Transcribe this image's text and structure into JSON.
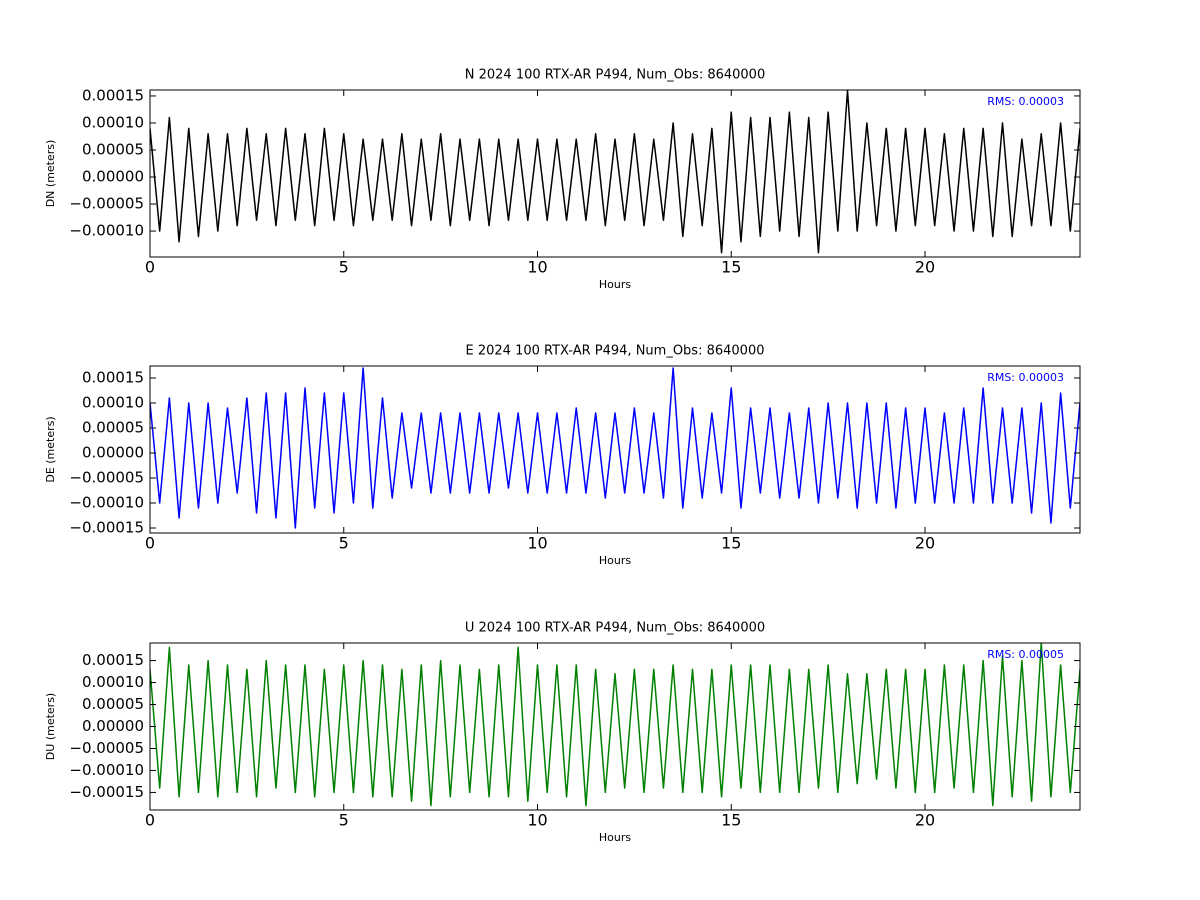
{
  "chart_data": [
    {
      "type": "line",
      "title": "N 2024 100 RTX-AR  P494, Num_Obs: 8640000",
      "xlabel": "Hours",
      "ylabel": "DN (meters)",
      "annotation": "RMS:  0.00003",
      "annotation_color": "#0000ff",
      "color": "#000000",
      "xlim": [
        0,
        24
      ],
      "ylim": [
        -0.000148,
        0.000161
      ],
      "xticks": [
        0,
        5,
        10,
        15,
        20
      ],
      "yticks": [
        {
          "value": -0.0001,
          "label": "−0.00010"
        },
        {
          "value": -5e-05,
          "label": "−0.00005"
        },
        {
          "value": 0,
          "label": "0.00000"
        },
        {
          "value": 5e-05,
          "label": "0.00005"
        },
        {
          "value": 0.0001,
          "label": "0.00010"
        },
        {
          "value": 0.00015,
          "label": "0.00015"
        }
      ],
      "x": [
        0,
        0.25,
        0.5,
        0.75,
        1,
        1.25,
        1.5,
        1.75,
        2,
        2.25,
        2.5,
        2.75,
        3,
        3.25,
        3.5,
        3.75,
        4,
        4.25,
        4.5,
        4.75,
        5,
        5.25,
        5.5,
        5.75,
        6,
        6.25,
        6.5,
        6.75,
        7,
        7.25,
        7.5,
        7.75,
        8,
        8.25,
        8.5,
        8.75,
        9,
        9.25,
        9.5,
        9.75,
        10,
        10.25,
        10.5,
        10.75,
        11,
        11.25,
        11.5,
        11.75,
        12,
        12.25,
        12.5,
        12.75,
        13,
        13.25,
        13.5,
        13.75,
        14,
        14.25,
        14.5,
        14.75,
        15,
        15.25,
        15.5,
        15.75,
        16,
        16.25,
        16.5,
        16.75,
        17,
        17.25,
        17.5,
        17.75,
        18,
        18.25,
        18.5,
        18.75,
        19,
        19.25,
        19.5,
        19.75,
        20,
        20.25,
        20.5,
        20.75,
        21,
        21.25,
        21.5,
        21.75,
        22,
        22.25,
        22.5,
        22.75,
        23,
        23.25,
        23.5,
        23.75,
        24
      ],
      "values": [
        9e-05,
        -0.0001,
        0.00011,
        -0.00012,
        9e-05,
        -0.00011,
        8e-05,
        -0.0001,
        8e-05,
        -9e-05,
        9e-05,
        -8e-05,
        8e-05,
        -9e-05,
        9e-05,
        -8e-05,
        8e-05,
        -9e-05,
        9e-05,
        -8e-05,
        8e-05,
        -9e-05,
        7e-05,
        -8e-05,
        7e-05,
        -8e-05,
        8e-05,
        -9e-05,
        7e-05,
        -8e-05,
        8e-05,
        -9e-05,
        7e-05,
        -8e-05,
        7e-05,
        -9e-05,
        7e-05,
        -8e-05,
        7e-05,
        -8e-05,
        7e-05,
        -8e-05,
        7e-05,
        -8e-05,
        7e-05,
        -8e-05,
        8e-05,
        -9e-05,
        7e-05,
        -8e-05,
        8e-05,
        -9e-05,
        7e-05,
        -8e-05,
        0.0001,
        -0.00011,
        8e-05,
        -9e-05,
        9e-05,
        -0.00014,
        0.00012,
        -0.00012,
        0.00011,
        -0.00011,
        0.00011,
        -0.0001,
        0.00012,
        -0.00011,
        0.00011,
        -0.00014,
        0.00012,
        -0.0001,
        0.00016,
        -0.0001,
        0.0001,
        -9e-05,
        9e-05,
        -0.0001,
        9e-05,
        -9e-05,
        9e-05,
        -9e-05,
        8e-05,
        -0.0001,
        9e-05,
        -0.0001,
        9e-05,
        -0.00011,
        0.0001,
        -0.00011,
        7e-05,
        -9e-05,
        8e-05,
        -9e-05,
        0.0001,
        -0.0001,
        9e-05
      ]
    },
    {
      "type": "line",
      "title": "E 2024 100 RTX-AR  P494, Num_Obs: 8640000",
      "xlabel": "Hours",
      "ylabel": "DE (meters)",
      "annotation": "RMS:  0.00003",
      "annotation_color": "#0000ff",
      "color": "#0000ff",
      "xlim": [
        0,
        24
      ],
      "ylim": [
        -0.00016,
        0.000174
      ],
      "xticks": [
        0,
        5,
        10,
        15,
        20
      ],
      "yticks": [
        {
          "value": -0.00015,
          "label": "−0.00015"
        },
        {
          "value": -0.0001,
          "label": "−0.00010"
        },
        {
          "value": -5e-05,
          "label": "−0.00005"
        },
        {
          "value": 0,
          "label": "0.00000"
        },
        {
          "value": 5e-05,
          "label": "0.00005"
        },
        {
          "value": 0.0001,
          "label": "0.00010"
        },
        {
          "value": 0.00015,
          "label": "0.00015"
        }
      ],
      "x": [
        0,
        0.25,
        0.5,
        0.75,
        1,
        1.25,
        1.5,
        1.75,
        2,
        2.25,
        2.5,
        2.75,
        3,
        3.25,
        3.5,
        3.75,
        4,
        4.25,
        4.5,
        4.75,
        5,
        5.25,
        5.5,
        5.75,
        6,
        6.25,
        6.5,
        6.75,
        7,
        7.25,
        7.5,
        7.75,
        8,
        8.25,
        8.5,
        8.75,
        9,
        9.25,
        9.5,
        9.75,
        10,
        10.25,
        10.5,
        10.75,
        11,
        11.25,
        11.5,
        11.75,
        12,
        12.25,
        12.5,
        12.75,
        13,
        13.25,
        13.5,
        13.75,
        14,
        14.25,
        14.5,
        14.75,
        15,
        15.25,
        15.5,
        15.75,
        16,
        16.25,
        16.5,
        16.75,
        17,
        17.25,
        17.5,
        17.75,
        18,
        18.25,
        18.5,
        18.75,
        19,
        19.25,
        19.5,
        19.75,
        20,
        20.25,
        20.5,
        20.75,
        21,
        21.25,
        21.5,
        21.75,
        22,
        22.25,
        22.5,
        22.75,
        23,
        23.25,
        23.5,
        23.75,
        24
      ],
      "values": [
        0.0001,
        -0.0001,
        0.00011,
        -0.00013,
        0.0001,
        -0.00011,
        0.0001,
        -0.0001,
        9e-05,
        -8e-05,
        0.00011,
        -0.00012,
        0.00012,
        -0.00013,
        0.00012,
        -0.00015,
        0.00013,
        -0.00011,
        0.00012,
        -0.00012,
        0.00012,
        -0.0001,
        0.00017,
        -0.00011,
        0.00011,
        -9e-05,
        8e-05,
        -7e-05,
        8e-05,
        -8e-05,
        8e-05,
        -8e-05,
        8e-05,
        -8e-05,
        8e-05,
        -8e-05,
        8e-05,
        -7e-05,
        8e-05,
        -8e-05,
        8e-05,
        -8e-05,
        8e-05,
        -8e-05,
        9e-05,
        -8e-05,
        8e-05,
        -9e-05,
        8e-05,
        -8e-05,
        9e-05,
        -8e-05,
        8e-05,
        -9e-05,
        0.00017,
        -0.00011,
        9e-05,
        -9e-05,
        8e-05,
        -8e-05,
        0.00013,
        -0.00011,
        9e-05,
        -8e-05,
        9e-05,
        -9e-05,
        8e-05,
        -9e-05,
        9e-05,
        -0.0001,
        0.0001,
        -9e-05,
        0.0001,
        -0.00011,
        0.0001,
        -0.0001,
        0.0001,
        -0.00011,
        9e-05,
        -0.0001,
        9e-05,
        -0.0001,
        8e-05,
        -0.0001,
        9e-05,
        -0.0001,
        0.00013,
        -0.0001,
        9e-05,
        -0.0001,
        9e-05,
        -0.00012,
        0.0001,
        -0.00014,
        0.00012,
        -0.00011,
        0.0001
      ]
    },
    {
      "type": "line",
      "title": "U 2024 100 RTX-AR  P494, Num_Obs: 8640000",
      "xlabel": "Hours",
      "ylabel": "DU (meters)",
      "annotation": "RMS:  0.00005",
      "annotation_color": "#0000ff",
      "color": "#008000",
      "xlim": [
        0,
        24
      ],
      "ylim": [
        -0.00019,
        0.00019
      ],
      "xticks": [
        0,
        5,
        10,
        15,
        20
      ],
      "yticks": [
        {
          "value": -0.00015,
          "label": "−0.00015"
        },
        {
          "value": -0.0001,
          "label": "−0.00010"
        },
        {
          "value": -5e-05,
          "label": "−0.00005"
        },
        {
          "value": 0,
          "label": "0.00000"
        },
        {
          "value": 5e-05,
          "label": "0.00005"
        },
        {
          "value": 0.0001,
          "label": "0.00010"
        },
        {
          "value": 0.00015,
          "label": "0.00015"
        }
      ],
      "x": [
        0,
        0.25,
        0.5,
        0.75,
        1,
        1.25,
        1.5,
        1.75,
        2,
        2.25,
        2.5,
        2.75,
        3,
        3.25,
        3.5,
        3.75,
        4,
        4.25,
        4.5,
        4.75,
        5,
        5.25,
        5.5,
        5.75,
        6,
        6.25,
        6.5,
        6.75,
        7,
        7.25,
        7.5,
        7.75,
        8,
        8.25,
        8.5,
        8.75,
        9,
        9.25,
        9.5,
        9.75,
        10,
        10.25,
        10.5,
        10.75,
        11,
        11.25,
        11.5,
        11.75,
        12,
        12.25,
        12.5,
        12.75,
        13,
        13.25,
        13.5,
        13.75,
        14,
        14.25,
        14.5,
        14.75,
        15,
        15.25,
        15.5,
        15.75,
        16,
        16.25,
        16.5,
        16.75,
        17,
        17.25,
        17.5,
        17.75,
        18,
        18.25,
        18.5,
        18.75,
        19,
        19.25,
        19.5,
        19.75,
        20,
        20.25,
        20.5,
        20.75,
        21,
        21.25,
        21.5,
        21.75,
        22,
        22.25,
        22.5,
        22.75,
        23,
        23.25,
        23.5,
        23.75,
        24
      ],
      "values": [
        0.00013,
        -0.00014,
        0.00018,
        -0.00016,
        0.00014,
        -0.00015,
        0.00015,
        -0.00016,
        0.00014,
        -0.00015,
        0.00013,
        -0.00016,
        0.00015,
        -0.00014,
        0.00014,
        -0.00015,
        0.00014,
        -0.00016,
        0.00013,
        -0.00015,
        0.00014,
        -0.00015,
        0.00015,
        -0.00016,
        0.00014,
        -0.00016,
        0.00013,
        -0.00017,
        0.00014,
        -0.00018,
        0.00015,
        -0.00016,
        0.00014,
        -0.00015,
        0.00013,
        -0.00016,
        0.00014,
        -0.00016,
        0.00018,
        -0.00017,
        0.00014,
        -0.00015,
        0.00014,
        -0.00016,
        0.00014,
        -0.00018,
        0.00013,
        -0.00015,
        0.00012,
        -0.00014,
        0.00013,
        -0.00015,
        0.00013,
        -0.00014,
        0.00014,
        -0.00015,
        0.00013,
        -0.00015,
        0.00013,
        -0.00016,
        0.00014,
        -0.00014,
        0.00014,
        -0.00015,
        0.00014,
        -0.00015,
        0.00013,
        -0.00015,
        0.00013,
        -0.00014,
        0.00014,
        -0.00015,
        0.00012,
        -0.00013,
        0.00012,
        -0.00012,
        0.00013,
        -0.00014,
        0.00013,
        -0.00015,
        0.00013,
        -0.00015,
        0.00014,
        -0.00014,
        0.00014,
        -0.00015,
        0.00015,
        -0.00018,
        0.00016,
        -0.00016,
        0.00015,
        -0.00017,
        0.00019,
        -0.00016,
        0.00014,
        -0.00015,
        0.00013
      ]
    }
  ]
}
